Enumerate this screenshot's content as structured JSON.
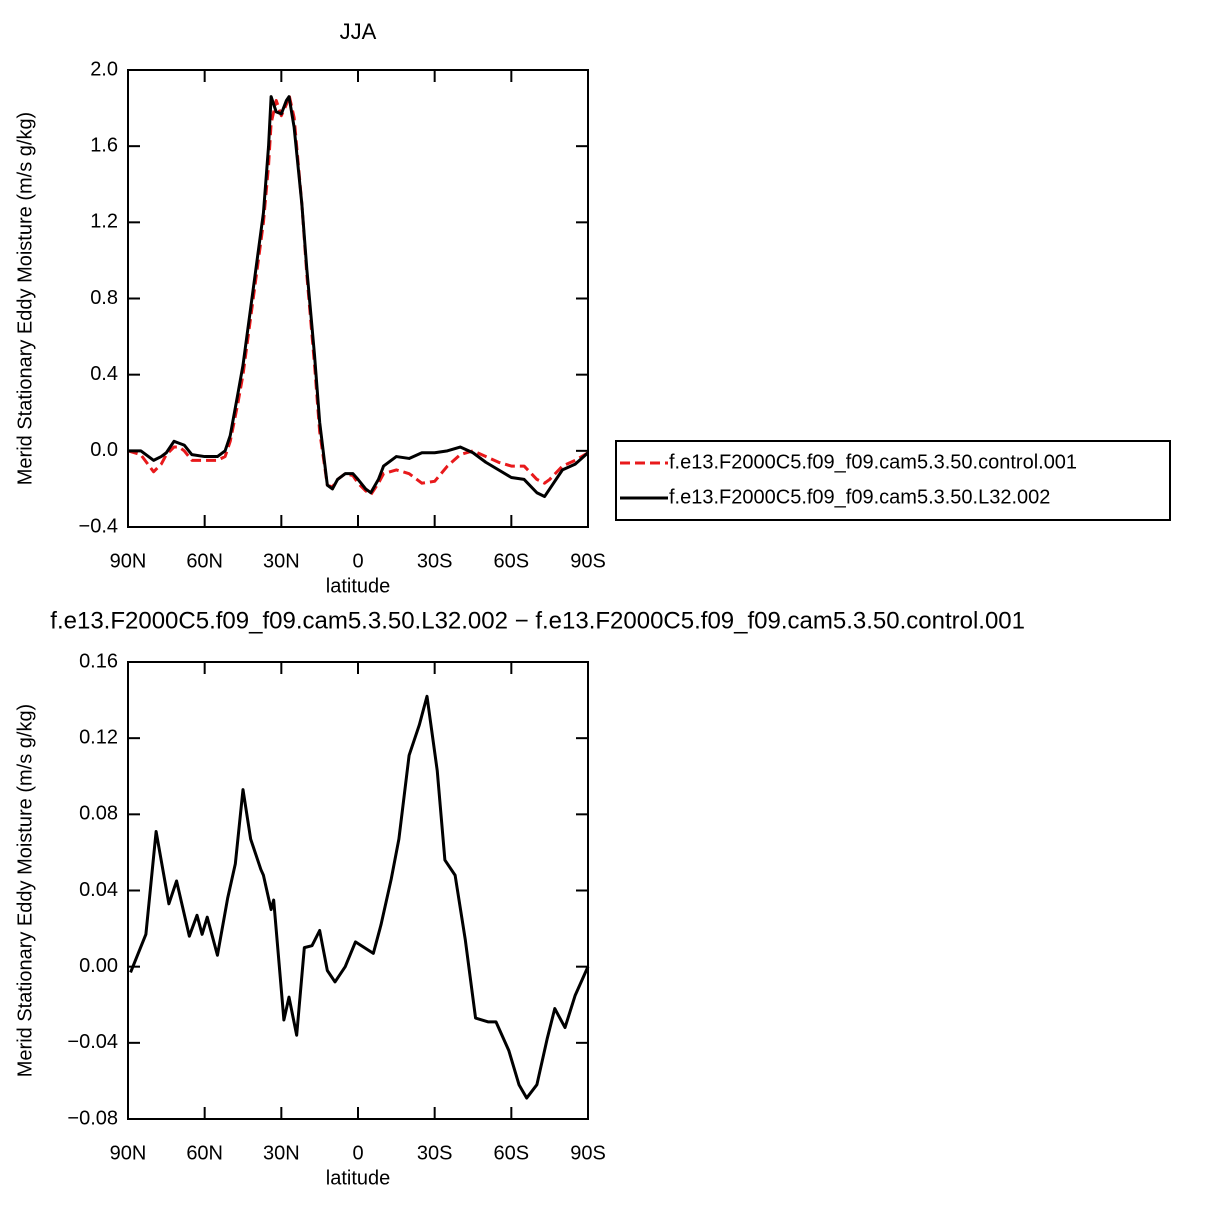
{
  "chart_data": [
    {
      "type": "line",
      "title": "JJA",
      "xlabel": "latitude",
      "ylabel": "Merid Stationary Eddy Moisture (m/s g/kg)",
      "x": [
        90,
        85,
        80,
        77,
        75,
        72,
        70,
        68,
        65,
        60,
        55,
        52,
        50,
        47,
        45,
        42,
        40,
        37,
        35,
        34,
        32,
        30,
        28,
        27,
        25,
        22,
        20,
        17,
        15,
        12,
        10,
        8,
        5,
        2,
        0,
        -3,
        -5,
        -8,
        -10,
        -15,
        -20,
        -25,
        -30,
        -35,
        -40,
        -45,
        -50,
        -55,
        -60,
        -65,
        -70,
        -73,
        -75,
        -80,
        -85,
        -90
      ],
      "series": [
        {
          "name": "f.e13.F2000C5.f09_f09.cam5.3.50.control.001",
          "color": "#e8191b",
          "line_style": "dashed",
          "values": [
            0.0,
            -0.02,
            -0.11,
            -0.07,
            -0.02,
            0.02,
            0.02,
            0.0,
            -0.05,
            -0.05,
            -0.05,
            -0.03,
            0.05,
            0.25,
            0.4,
            0.7,
            0.9,
            1.2,
            1.5,
            1.72,
            1.84,
            1.76,
            1.82,
            1.87,
            1.75,
            1.3,
            0.92,
            0.45,
            0.1,
            -0.18,
            -0.19,
            -0.15,
            -0.12,
            -0.13,
            -0.17,
            -0.21,
            -0.23,
            -0.17,
            -0.12,
            -0.1,
            -0.12,
            -0.17,
            -0.16,
            -0.08,
            -0.02,
            0.0,
            -0.03,
            -0.06,
            -0.08,
            -0.08,
            -0.15,
            -0.17,
            -0.15,
            -0.08,
            -0.05,
            -0.01
          ]
        },
        {
          "name": "f.e13.F2000C5.f09_f09.cam5.3.50.L32.002",
          "color": "#000000",
          "line_style": "solid",
          "values": [
            0.0,
            0.0,
            -0.05,
            -0.03,
            -0.01,
            0.05,
            0.04,
            0.03,
            -0.02,
            -0.03,
            -0.03,
            0.0,
            0.08,
            0.3,
            0.45,
            0.75,
            0.95,
            1.25,
            1.6,
            1.86,
            1.78,
            1.77,
            1.84,
            1.86,
            1.7,
            1.3,
            0.95,
            0.5,
            0.15,
            -0.18,
            -0.2,
            -0.15,
            -0.12,
            -0.12,
            -0.15,
            -0.2,
            -0.22,
            -0.15,
            -0.08,
            -0.03,
            -0.04,
            -0.01,
            -0.01,
            0.0,
            0.02,
            -0.01,
            -0.06,
            -0.1,
            -0.14,
            -0.15,
            -0.22,
            -0.24,
            -0.2,
            -0.1,
            -0.07,
            -0.01
          ]
        }
      ],
      "xlim": [
        90,
        -90
      ],
      "xticks": [
        {
          "value": 90,
          "label": "90N"
        },
        {
          "value": 60,
          "label": "60N"
        },
        {
          "value": 30,
          "label": "30N"
        },
        0,
        {
          "value": -30,
          "label": "30S"
        },
        {
          "value": -60,
          "label": "60S"
        },
        {
          "value": -90,
          "label": "90S"
        }
      ],
      "ylim": [
        -0.4,
        2.0
      ],
      "yticks": [
        {
          "value": -0.4,
          "label": "−0.4"
        },
        {
          "value": 0,
          "label": "0.0"
        },
        0.4,
        0.8,
        1.2,
        1.6,
        {
          "value": 2,
          "label": "2.0"
        }
      ],
      "legend": "right"
    },
    {
      "type": "line",
      "title": "f.e13.F2000C5.f09_f09.cam5.3.50.L32.002 − f.e13.F2000C5.f09_f09.cam5.3.50.control.001",
      "xlabel": "latitude",
      "ylabel": "Merid Stationary Eddy Moisture (m/s g/kg)",
      "x": [
        89,
        83,
        79,
        74,
        71,
        66,
        63,
        61,
        59,
        55,
        51,
        48,
        45,
        42,
        38,
        37,
        34,
        33,
        29,
        27,
        24,
        21,
        18,
        15,
        12,
        9,
        5,
        1,
        -6,
        -9,
        -13,
        -16,
        -20,
        -24,
        -27,
        -31,
        -34,
        -38,
        -42,
        -46,
        -51,
        -54,
        -59,
        -63,
        -66,
        -70,
        -74,
        -77,
        -81,
        -85,
        -90
      ],
      "series": [
        {
          "color": "#000000",
          "line_style": "solid",
          "values": [
            -0.003,
            0.017,
            0.071,
            0.033,
            0.045,
            0.016,
            0.027,
            0.017,
            0.026,
            0.006,
            0.036,
            0.054,
            0.093,
            0.067,
            0.051,
            0.048,
            0.03,
            0.035,
            -0.028,
            -0.016,
            -0.036,
            0.01,
            0.011,
            0.019,
            -0.002,
            -0.008,
            0.0,
            0.013,
            0.007,
            0.022,
            0.046,
            0.067,
            0.111,
            0.127,
            0.142,
            0.103,
            0.056,
            0.048,
            0.014,
            -0.027,
            -0.029,
            -0.029,
            -0.044,
            -0.062,
            -0.069,
            -0.062,
            -0.038,
            -0.022,
            -0.032,
            -0.015,
            0.0
          ]
        }
      ],
      "xlim": [
        90,
        -90
      ],
      "xticks": [
        {
          "value": 90,
          "label": "90N"
        },
        {
          "value": 60,
          "label": "60N"
        },
        {
          "value": 30,
          "label": "30N"
        },
        0,
        {
          "value": -30,
          "label": "30S"
        },
        {
          "value": -60,
          "label": "60S"
        },
        {
          "value": -90,
          "label": "90S"
        }
      ],
      "ylim": [
        -0.08,
        0.16
      ],
      "yticks": [
        {
          "value": -0.08,
          "label": "−0.08"
        },
        {
          "value": -0.04,
          "label": "−0.04"
        },
        {
          "value": 0,
          "label": "0.00"
        },
        0.04,
        0.08,
        0.12,
        0.16
      ]
    }
  ]
}
